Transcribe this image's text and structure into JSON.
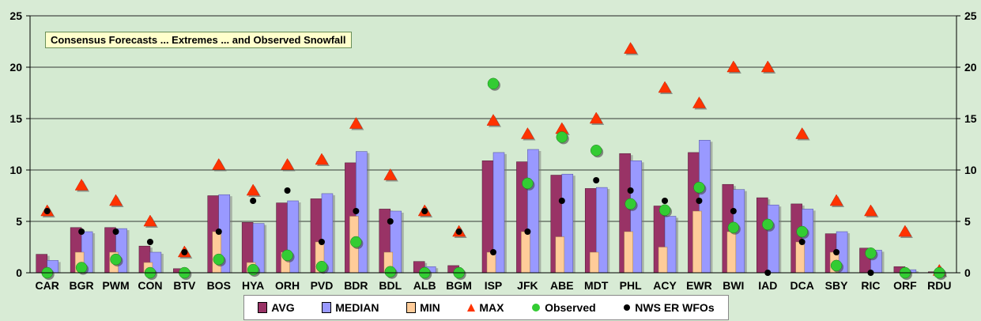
{
  "colors": {
    "avg": "#993366",
    "median": "#9999ff",
    "min": "#ffcc99",
    "max": "#ff3300",
    "observed": "#33cc33",
    "nws": "#000000",
    "plot_bg": "#d4ead1",
    "grid": "#000000"
  },
  "chart_data": {
    "type": "bar",
    "title": "Consensus Forecasts ... Extremes ... and Observed Snowfall",
    "xlabel": "",
    "ylabel": "",
    "ylim": [
      0,
      25
    ],
    "yticks": [
      0,
      5,
      10,
      15,
      20,
      25
    ],
    "categories": [
      "CAR",
      "BGR",
      "PWM",
      "CON",
      "BTV",
      "BOS",
      "HYA",
      "ORH",
      "PVD",
      "BDR",
      "BDL",
      "ALB",
      "BGM",
      "ISP",
      "JFK",
      "ABE",
      "MDT",
      "PHL",
      "ACY",
      "EWR",
      "BWI",
      "IAD",
      "DCA",
      "SBY",
      "RIC",
      "ORF",
      "RDU"
    ],
    "series": [
      {
        "name": "AVG",
        "kind": "bar",
        "values": [
          1.8,
          4.4,
          4.4,
          2.6,
          0.4,
          7.5,
          4.9,
          6.8,
          7.2,
          10.7,
          6.2,
          1.1,
          0.7,
          10.9,
          10.8,
          9.5,
          8.2,
          11.6,
          6.5,
          11.7,
          8.6,
          7.3,
          6.7,
          3.8,
          2.4,
          0.6,
          0.1
        ]
      },
      {
        "name": "MEDIAN",
        "kind": "bar",
        "values": [
          1.2,
          4.0,
          4.3,
          2.0,
          0.0,
          7.6,
          4.8,
          7.0,
          7.7,
          11.8,
          6.0,
          0.6,
          0.0,
          11.7,
          12.0,
          9.6,
          8.3,
          10.9,
          5.5,
          12.9,
          8.1,
          6.6,
          6.2,
          4.0,
          2.2,
          0.3,
          0.0
        ]
      },
      {
        "name": "MIN",
        "kind": "bar",
        "values": [
          0.0,
          2.0,
          2.0,
          1.0,
          0.0,
          4.0,
          1.0,
          2.0,
          3.0,
          5.5,
          2.0,
          0.0,
          0.0,
          2.0,
          4.0,
          3.5,
          2.0,
          4.0,
          2.5,
          6.0,
          4.0,
          0.0,
          3.0,
          2.0,
          0.0,
          0.0,
          0.0
        ]
      },
      {
        "name": "MAX",
        "kind": "marker",
        "values": [
          6.0,
          8.5,
          7.0,
          5.0,
          2.0,
          10.5,
          8.0,
          10.5,
          11.0,
          14.5,
          9.5,
          6.0,
          4.0,
          14.8,
          13.5,
          14.0,
          15.0,
          21.8,
          18.0,
          16.5,
          20.0,
          20.0,
          13.5,
          7.0,
          6.0,
          4.0,
          0.2
        ]
      },
      {
        "name": "Observed",
        "kind": "marker",
        "values": [
          0.0,
          0.5,
          1.3,
          0.0,
          0.0,
          1.3,
          0.3,
          1.7,
          0.6,
          3.0,
          0.1,
          0.0,
          0.0,
          18.4,
          8.7,
          13.2,
          11.9,
          6.7,
          6.1,
          8.3,
          4.4,
          4.7,
          4.0,
          0.7,
          1.9,
          0.0,
          0.0
        ]
      },
      {
        "name": "NWS ER WFOs",
        "kind": "marker",
        "values": [
          6.0,
          4.0,
          4.0,
          3.0,
          2.0,
          4.0,
          7.0,
          8.0,
          3.0,
          6.0,
          5.0,
          6.0,
          4.0,
          2.0,
          4.0,
          7.0,
          9.0,
          8.0,
          7.0,
          7.0,
          6.0,
          0.0,
          3.0,
          2.0,
          0.0,
          0.0,
          0.0
        ]
      }
    ],
    "grid": true,
    "legend_position": "bottom"
  }
}
